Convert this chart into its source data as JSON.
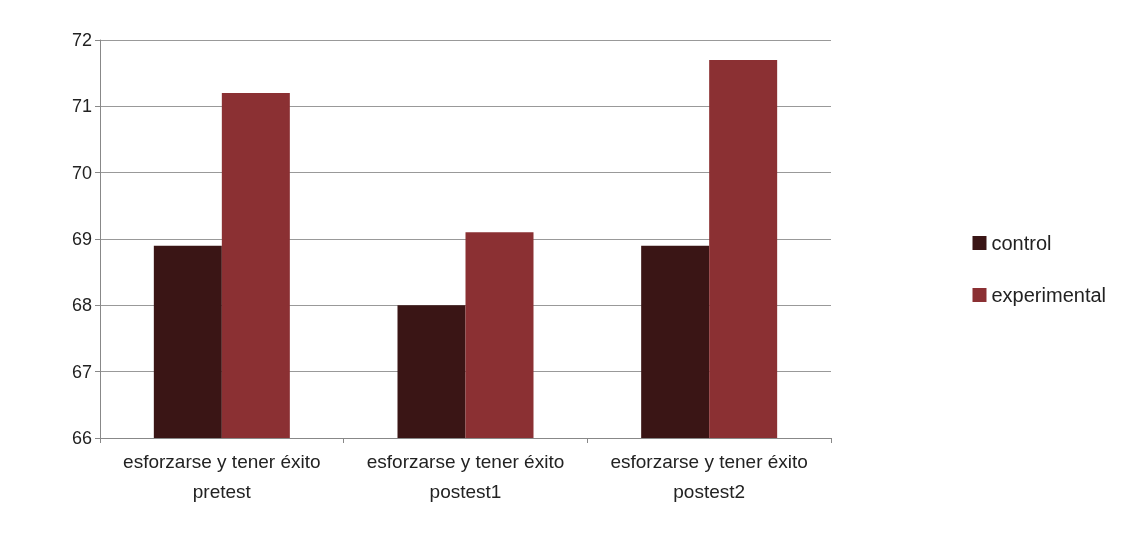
{
  "chart_data": {
    "type": "bar",
    "categories": [
      "esforzarse y tener éxito pretest",
      "esforzarse y tener éxito postest1",
      "esforzarse y tener éxito postest2"
    ],
    "series": [
      {
        "name": "control",
        "color": "#3a1515",
        "values": [
          68.9,
          68.0,
          68.9
        ]
      },
      {
        "name": "experimental",
        "color": "#8b3033",
        "values": [
          71.2,
          69.1,
          71.7
        ]
      }
    ],
    "ylim": [
      66,
      72
    ],
    "yticks": [
      66,
      67,
      68,
      69,
      70,
      71,
      72
    ],
    "grid": "y",
    "legend": "right"
  }
}
